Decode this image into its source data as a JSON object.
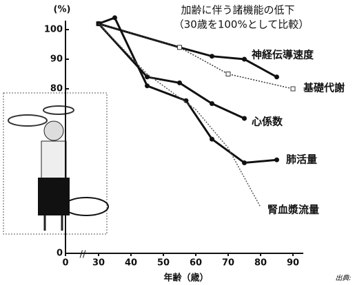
{
  "chart_data": {
    "type": "line",
    "title": "加齢に伴う諸機能の低下",
    "subtitle": "（30歳を100%として比較）",
    "y_label": "(%)",
    "x_label": "年齢（歳）",
    "source": "出典:",
    "x_break": true,
    "y_break": true,
    "xlim": [
      0,
      95
    ],
    "xticks": [
      0,
      30,
      40,
      50,
      60,
      70,
      80,
      90
    ],
    "ylim": [
      0,
      105
    ],
    "yticks": [
      0,
      80,
      90,
      100
    ],
    "series": [
      {
        "name": "神経伝導速度",
        "color": "#111",
        "dash": false,
        "marker": "circle",
        "x": [
          30,
          55,
          65,
          75,
          85
        ],
        "values": [
          102,
          94,
          91,
          90,
          84
        ]
      },
      {
        "name": "基礎代謝",
        "color": "#333",
        "dash": true,
        "marker": "square",
        "x": [
          30,
          55,
          70,
          90
        ],
        "values": [
          102,
          94,
          85,
          80
        ]
      },
      {
        "name": "心係数",
        "color": "#111",
        "dash": false,
        "marker": "circle",
        "x": [
          30,
          45,
          55,
          65,
          75
        ],
        "values": [
          102,
          84,
          82,
          75,
          70
        ]
      },
      {
        "name": "肺活量",
        "color": "#111",
        "dash": false,
        "marker": "circle",
        "x": [
          30,
          35,
          45,
          57,
          65,
          75,
          85
        ],
        "values": [
          102,
          104,
          81,
          76,
          63,
          55,
          56
        ]
      },
      {
        "name": "腎血漿流量",
        "color": "#555",
        "dash": true,
        "marker": "none",
        "x": [
          30,
          45,
          60,
          70,
          80
        ],
        "values": [
          102,
          85,
          73,
          60,
          40
        ]
      }
    ]
  }
}
